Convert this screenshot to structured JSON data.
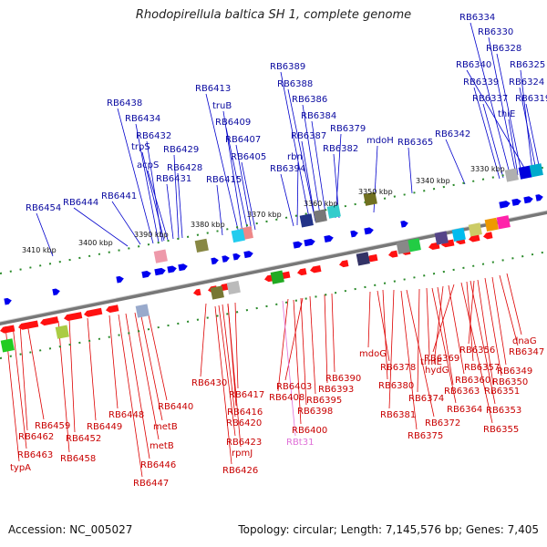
{
  "title": "Rhodopirellula baltica SH 1, complete genome",
  "footer": {
    "accession": "Accession: NC_005027",
    "topology": "Topology: circular; Length: 7,145,576 bp; Genes: 7,405"
  },
  "kbp_labels": [
    "3330 kbp",
    "3340 kbp",
    "3350 kbp",
    "3360 kbp",
    "3370 kbp",
    "3380 kbp",
    "3390 kbp",
    "3400 kbp",
    "3410 kbp"
  ],
  "top_labels": [
    "RB6334",
    "RB6330",
    "RB6328",
    "RB6340",
    "RB6325",
    "RB6339",
    "RB6324",
    "RB6337",
    "RB6319",
    "thiE",
    "RB6342",
    "RB6365",
    "RB6389",
    "RB6388",
    "RB6386",
    "RB6384",
    "RB6379",
    "RB6387",
    "mdoH",
    "RB6382",
    "rbn",
    "RB6394",
    "RB6413",
    "truB",
    "RB6409",
    "RB6407",
    "RB6405",
    "RB6415",
    "RB6438",
    "RB6434",
    "RB6432",
    "trpS",
    "RB6429",
    "acpS",
    "RB6428",
    "RB6431",
    "RB6441",
    "RB6444",
    "RB6454"
  ],
  "bottom_labels": [
    "dnaG",
    "RB6347",
    "RB6349",
    "RB6350",
    "RB6356",
    "RB6357",
    "RB6351",
    "RB6353",
    "RB6355",
    "RB6369",
    "RB6360",
    "hydG",
    "RB6363",
    "RB6364",
    "mdoG",
    "RB6378",
    "RB6380",
    "trmE",
    "RB6374",
    "RB6381",
    "RB6372",
    "RB6375",
    "RB6390",
    "RB6393",
    "RB6403",
    "RB6395",
    "RB6408",
    "RB6398",
    "RB6400",
    "RBt31",
    "RB6430",
    "RB6417",
    "RB6416",
    "RB6420",
    "RB6423",
    "rpmJ",
    "RB6426",
    "RB6440",
    "metB",
    "metB",
    "RB6448",
    "RB6446",
    "RB6447",
    "RB6449",
    "RB6452",
    "RB6458",
    "RB6459",
    "RB6462",
    "RB6463",
    "typA"
  ]
}
